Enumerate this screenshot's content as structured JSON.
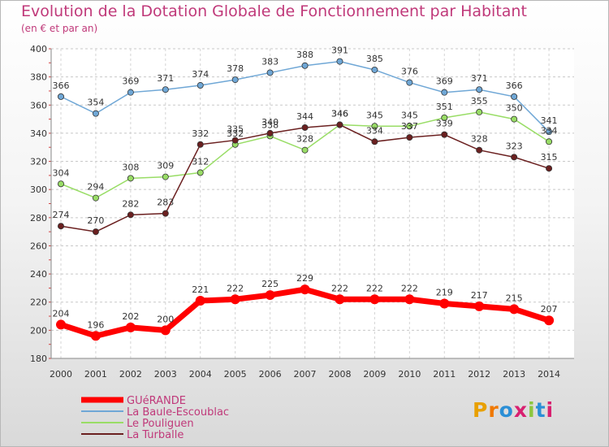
{
  "header": {
    "title": "Evolution de la Dotation Globale de Fonctionnement par Habitant",
    "subtitle": "(en € et par an)"
  },
  "logo": {
    "text": "Proxiti",
    "colors": [
      "#e8a000",
      "#f07800",
      "#2b8fd6",
      "#d82070",
      "#8cc63f",
      "#2b8fd6",
      "#d82070"
    ]
  },
  "chart_data": {
    "type": "line",
    "title": "Evolution de la Dotation Globale de Fonctionnement par Habitant",
    "subtitle": "(en € et par an)",
    "xlabel": "",
    "ylabel": "",
    "ylim": [
      180,
      400
    ],
    "yticks": [
      180,
      200,
      220,
      240,
      260,
      280,
      300,
      320,
      340,
      360,
      380,
      400
    ],
    "grid": true,
    "legend_position": "bottom-left",
    "categories": [
      "2000",
      "2001",
      "2002",
      "2003",
      "2004",
      "2005",
      "2006",
      "2007",
      "2008",
      "2009",
      "2010",
      "2011",
      "2012",
      "2013",
      "2014"
    ],
    "series": [
      {
        "name": "GUéRANDE",
        "color": "#ff0000",
        "emphasis": true,
        "labels_above": true,
        "values": [
          204,
          196,
          202,
          200,
          221,
          222,
          225,
          229,
          222,
          222,
          222,
          219,
          217,
          215,
          207
        ]
      },
      {
        "name": "La Baule-Escoublac",
        "color": "#6fa7d6",
        "emphasis": false,
        "labels_above": true,
        "values": [
          366,
          354,
          369,
          371,
          374,
          378,
          383,
          388,
          391,
          385,
          376,
          369,
          371,
          366,
          341
        ]
      },
      {
        "name": "Le Pouliguen",
        "color": "#99dd66",
        "emphasis": false,
        "labels_above": false,
        "values": [
          304,
          294,
          308,
          309,
          312,
          332,
          338,
          328,
          346,
          345,
          345,
          351,
          355,
          350,
          334
        ]
      },
      {
        "name": "La Turballe",
        "color": "#6b2020",
        "emphasis": false,
        "labels_above": true,
        "values": [
          274,
          270,
          282,
          283,
          332,
          335,
          340,
          344,
          346,
          334,
          337,
          339,
          328,
          323,
          315
        ]
      }
    ]
  }
}
